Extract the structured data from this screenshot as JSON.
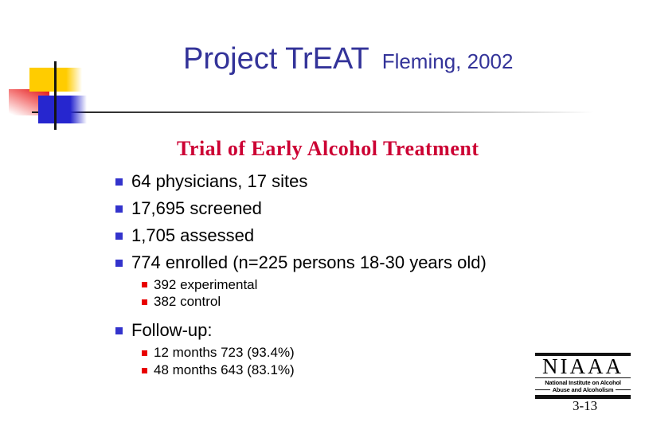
{
  "slide": {
    "title": "Project TrEAT",
    "title_suffix": "Fleming, 2002",
    "heading": "Trial of Early Alcohol Treatment",
    "bullets": [
      {
        "level": 1,
        "text": "64 physicians, 17 sites"
      },
      {
        "level": 1,
        "text": "17,695 screened"
      },
      {
        "level": 1,
        "text": "1,705 assessed"
      },
      {
        "level": 1,
        "text": "774 enrolled (n=225 persons 18-30 years old)"
      },
      {
        "level": 2,
        "text": "392 experimental"
      },
      {
        "level": 2,
        "text": "382 control"
      },
      {
        "level": 1,
        "text": "Follow-up:"
      },
      {
        "level": 2,
        "text": "12 months 723 (93.4%)"
      },
      {
        "level": 2,
        "text": "48 months 643 (83.1%)"
      }
    ],
    "logo": {
      "acronym": "NIAAA",
      "line1": "National Institute on Alcohol",
      "line2": "Abuse and Alcoholism"
    },
    "page_number": "3-13",
    "colors": {
      "title_blue": "#333399",
      "heading_red": "#CC0033",
      "bullet_blue": "#3333CC",
      "bullet_red": "#E80000",
      "decoration_yellow": "#FFCC00",
      "decoration_blue": "#2626CF",
      "decoration_red": "#E31C1C",
      "line_gray": "#555555"
    }
  }
}
